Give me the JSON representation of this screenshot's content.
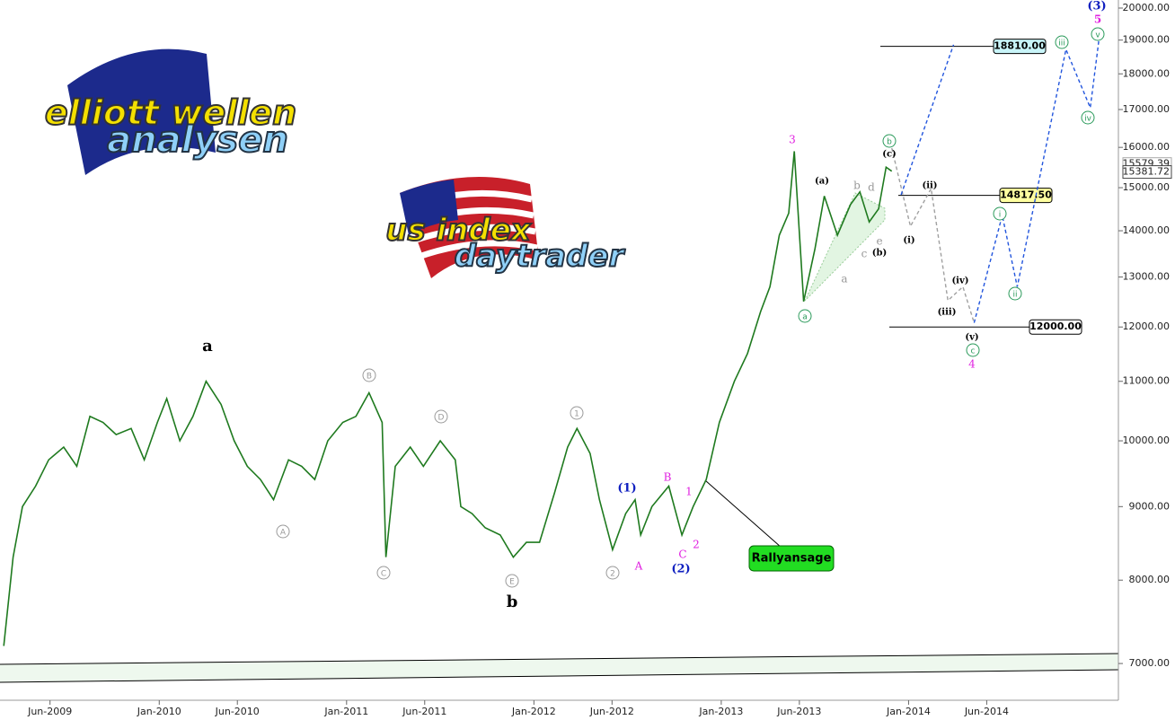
{
  "chart_data": {
    "type": "line",
    "log_y": true,
    "xlim": [
      2009.15,
      2015.12
    ],
    "ylim": [
      6600,
      20260
    ],
    "xticks": [
      {
        "value": 2009.417,
        "label": "Jun-2009"
      },
      {
        "value": 2010.0,
        "label": "Jan-2010"
      },
      {
        "value": 2010.417,
        "label": "Jun-2010"
      },
      {
        "value": 2011.0,
        "label": "Jan-2011"
      },
      {
        "value": 2011.417,
        "label": "Jun-2011"
      },
      {
        "value": 2012.0,
        "label": "Jan-2012"
      },
      {
        "value": 2012.417,
        "label": "Jun-2012"
      },
      {
        "value": 2013.0,
        "label": "Jan-2013"
      },
      {
        "value": 2013.417,
        "label": "Jun-2013"
      },
      {
        "value": 2014.0,
        "label": "Jan-2014"
      },
      {
        "value": 2014.417,
        "label": "Jun-2014"
      }
    ],
    "yticks": [
      {
        "value": 7000,
        "label": "7000.00"
      },
      {
        "value": 8000,
        "label": "8000.00"
      },
      {
        "value": 9000,
        "label": "9000.00"
      },
      {
        "value": 10000,
        "label": "10000.00"
      },
      {
        "value": 11000,
        "label": "11000.00"
      },
      {
        "value": 12000,
        "label": "12000.00"
      },
      {
        "value": 13000,
        "label": "13000.00"
      },
      {
        "value": 14000,
        "label": "14000.00"
      },
      {
        "value": 15000,
        "label": "15000.00"
      },
      {
        "value": 16000,
        "label": "16000.00"
      },
      {
        "value": 17000,
        "label": "17000.00"
      },
      {
        "value": 18000,
        "label": "18000.00"
      },
      {
        "value": 19000,
        "label": "19000.00"
      },
      {
        "value": 20000,
        "label": "20000.00"
      }
    ],
    "series": [
      {
        "color": "#1f7a1f",
        "x": [
          2009.17,
          2009.22,
          2009.27,
          2009.34,
          2009.41,
          2009.49,
          2009.56,
          2009.63,
          2009.7,
          2009.77,
          2009.85,
          2009.92,
          2009.99,
          2010.04,
          2010.11,
          2010.18,
          2010.25,
          2010.33,
          2010.4,
          2010.47,
          2010.54,
          2010.61,
          2010.69,
          2010.76,
          2010.83,
          2010.9,
          2010.98,
          2011.05,
          2011.12,
          2011.19,
          2011.21,
          2011.26,
          2011.34,
          2011.41,
          2011.5,
          2011.58,
          2011.61,
          2011.67,
          2011.74,
          2011.82,
          2011.89,
          2011.96,
          2012.03,
          2012.11,
          2012.18,
          2012.23,
          2012.3,
          2012.35,
          2012.42,
          2012.49,
          2012.54,
          2012.57,
          2012.63,
          2012.72,
          2012.79,
          2012.85,
          2012.92,
          2012.99,
          2013.07,
          2013.14,
          2013.21,
          2013.26,
          2013.31,
          2013.36,
          2013.39,
          2013.44,
          2013.5,
          2013.55,
          2013.62,
          2013.69,
          2013.74,
          2013.79,
          2013.84,
          2013.88,
          2013.91
        ],
        "values": [
          7200,
          8300,
          9000,
          9300,
          9700,
          9900,
          9600,
          10400,
          10300,
          10100,
          10200,
          9700,
          10300,
          10700,
          10000,
          10400,
          11000,
          10600,
          10000,
          9600,
          9400,
          9100,
          9700,
          9600,
          9400,
          10000,
          10300,
          10400,
          10800,
          10300,
          8300,
          9600,
          9900,
          9600,
          10000,
          9700,
          9000,
          8900,
          8700,
          8600,
          8300,
          8500,
          8500,
          9200,
          9900,
          10200,
          9800,
          9100,
          8400,
          8900,
          9100,
          8600,
          9000,
          9300,
          8600,
          9000,
          9400,
          10300,
          11000,
          11500,
          12300,
          12800,
          13900,
          14400,
          15900,
          12500,
          13600,
          14800,
          13900,
          14600,
          14900,
          14200,
          14500,
          15500,
          15400
        ]
      },
      {
        "color": "#a0a0a0",
        "x": [
          2013.91,
          2014.01,
          2014.12,
          2014.21,
          2014.29,
          2014.35
        ],
        "values": [
          15980,
          14100,
          14980,
          12520,
          12800,
          12080
        ]
      },
      {
        "color": "#2255dd",
        "x": [
          2013.96,
          2014.24
        ],
        "values": [
          14830,
          18860
        ]
      },
      {
        "color": "#2255dd",
        "x": [
          2014.35,
          2014.5,
          2014.58,
          2014.84,
          2014.97,
          2015.02
        ],
        "values": [
          12080,
          14350,
          12800,
          18720,
          17050,
          19180
        ]
      }
    ],
    "levels": [
      {
        "value": 18810,
        "label": "18810.00",
        "color": "#c8f4f8"
      },
      {
        "value": 14817.5,
        "label": "14817.50",
        "color": "#ffffa0"
      },
      {
        "value": 12000,
        "label": "12000.00",
        "color": "#ffffff"
      }
    ],
    "price_tags": [
      15579.39,
      15381.72
    ],
    "annotations": [
      "a",
      "b",
      "A",
      "B",
      "C",
      "D",
      "E",
      "1",
      "2",
      "(1)",
      "(2)",
      "A",
      "B",
      "C",
      "1",
      "2",
      "3",
      "a",
      "b",
      "c",
      "4",
      "(a)",
      "(b)",
      "(c)",
      "a",
      "b",
      "c",
      "d",
      "e",
      "(i)",
      "(ii)",
      "(iii)",
      "(iv)",
      "(v)",
      "i",
      "ii",
      "iii",
      "iv",
      "v",
      "(3)",
      "5"
    ],
    "callout": "Rallyansage",
    "logos": [
      "elliott wellen",
      "analysen",
      "us index",
      "daytrader"
    ]
  }
}
